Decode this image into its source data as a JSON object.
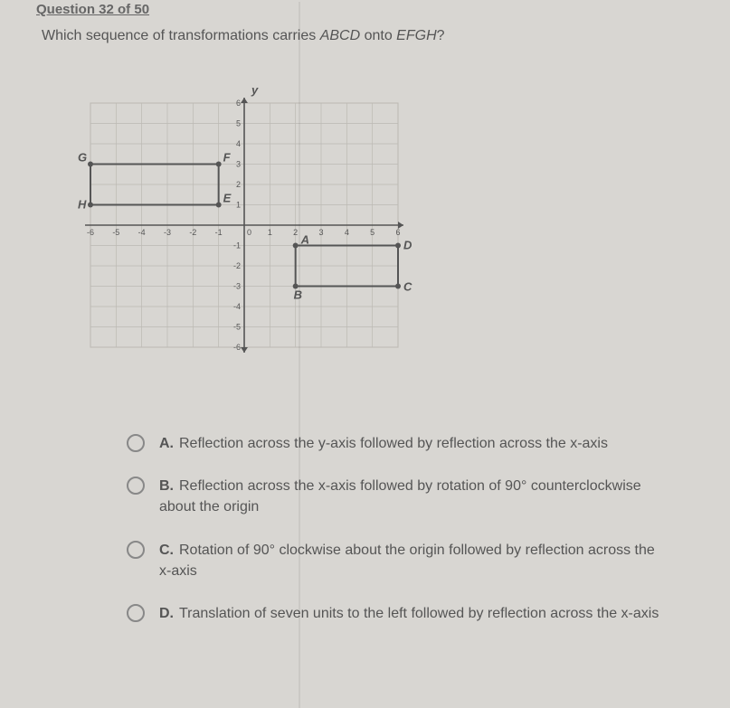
{
  "header": "Question 32 of 50",
  "prompt_pre": "Which sequence of transformations carries ",
  "prompt_ital1": "ABCD",
  "prompt_mid": " onto ",
  "prompt_ital2": "EFGH",
  "prompt_post": "?",
  "graph": {
    "xlim": [
      -6,
      6
    ],
    "ylim": [
      -6,
      6
    ],
    "tick_step": 1,
    "grid_color": "#bbb8b3",
    "axis_color": "#555",
    "label_color": "#555",
    "y_label": "y",
    "shapes": {
      "ABCD": {
        "A": [
          2,
          -1
        ],
        "B": [
          2,
          -3
        ],
        "C": [
          6,
          -3
        ],
        "D": [
          6,
          -1
        ],
        "stroke": "#555",
        "width": 2,
        "labels": {
          "A": "A",
          "B": "B",
          "C": "C",
          "D": "D"
        }
      },
      "EFGH": {
        "E": [
          -1,
          1
        ],
        "F": [
          -1,
          3
        ],
        "G": [
          -6,
          3
        ],
        "H": [
          -6,
          1
        ],
        "stroke": "#555",
        "width": 2,
        "labels": {
          "E": "E",
          "F": "F",
          "G": "G",
          "H": "H"
        }
      }
    },
    "tick_labels_x": [
      "-6",
      "-5",
      "-4",
      "-3",
      "-2",
      "-1",
      "0",
      "1",
      "2",
      "3",
      "4",
      "5",
      "6"
    ],
    "tick_labels_y_pos": [
      "1",
      "2",
      "3",
      "4",
      "5",
      "6"
    ],
    "tick_labels_y_neg": [
      "-1",
      "-2",
      "-3",
      "-4",
      "-5",
      "-6"
    ]
  },
  "choices": [
    {
      "letter": "A.",
      "text": "Reflection across the y-axis followed by reflection across the x-axis"
    },
    {
      "letter": "B.",
      "text": "Reflection across the x-axis followed by rotation of 90° counterclockwise about the origin"
    },
    {
      "letter": "C.",
      "text": "Rotation of 90° clockwise about the origin followed by reflection across the x-axis"
    },
    {
      "letter": "D.",
      "text": "Translation of seven units to the left followed by reflection across the x-axis"
    }
  ]
}
